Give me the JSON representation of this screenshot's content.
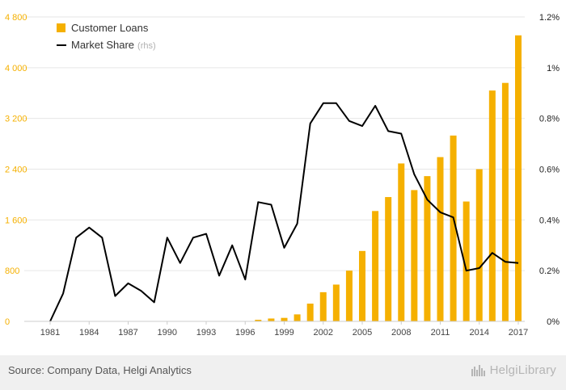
{
  "chart_data": {
    "type": "bar",
    "categories": [
      "1981",
      "1982",
      "1983",
      "1984",
      "1985",
      "1986",
      "1987",
      "1988",
      "1989",
      "1990",
      "1991",
      "1992",
      "1993",
      "1994",
      "1995",
      "1996",
      "1997",
      "1998",
      "1999",
      "2000",
      "2001",
      "2002",
      "2003",
      "2004",
      "2005",
      "2006",
      "2007",
      "2008",
      "2009",
      "2010",
      "2011",
      "2012",
      "2013",
      "2014",
      "2015",
      "2016",
      "2017"
    ],
    "x_tick_labels": [
      "1981",
      "1984",
      "1987",
      "1990",
      "1993",
      "1996",
      "1999",
      "2002",
      "2005",
      "2008",
      "2011",
      "2014",
      "2017"
    ],
    "series": [
      {
        "name": "Customer Loans",
        "type": "bar",
        "axis": "left",
        "color": "#f5b000",
        "values": [
          0,
          0,
          0,
          0,
          0,
          0,
          0,
          0,
          0,
          0,
          0,
          0,
          0,
          0,
          0,
          0,
          25,
          45,
          55,
          110,
          280,
          460,
          580,
          800,
          1110,
          1740,
          1960,
          2490,
          2070,
          2290,
          2590,
          2930,
          1890,
          2400,
          3640,
          3760,
          4510
        ]
      },
      {
        "name": "Market Share",
        "name_suffix": "(rhs)",
        "type": "line",
        "axis": "right",
        "color": "#000000",
        "values": [
          0.0,
          0.11,
          0.33,
          0.37,
          0.33,
          0.1,
          0.15,
          0.12,
          0.075,
          0.33,
          0.23,
          0.33,
          0.345,
          0.18,
          0.3,
          0.165,
          0.47,
          0.46,
          0.29,
          0.385,
          0.78,
          0.86,
          0.86,
          0.79,
          0.77,
          0.85,
          0.75,
          0.74,
          0.58,
          0.48,
          0.43,
          0.41,
          0.2,
          0.21,
          0.27,
          0.235,
          0.23
        ]
      }
    ],
    "y_left": {
      "ylim": [
        0,
        4800
      ],
      "ticks": [
        "0",
        "800",
        "1 600",
        "2 400",
        "3 200",
        "4 000",
        "4 800"
      ],
      "color": "#f5b000"
    },
    "y_right": {
      "ylim": [
        0,
        1.2
      ],
      "unit": "%",
      "ticks": [
        "0%",
        "0.2%",
        "0.4%",
        "0.6%",
        "0.8%",
        "1%",
        "1.2%"
      ]
    },
    "grid": true,
    "legend_placement": "top-left"
  },
  "footer": {
    "source": "Source: Company Data, Helgi Analytics",
    "brand": "HelgiLibrary"
  }
}
